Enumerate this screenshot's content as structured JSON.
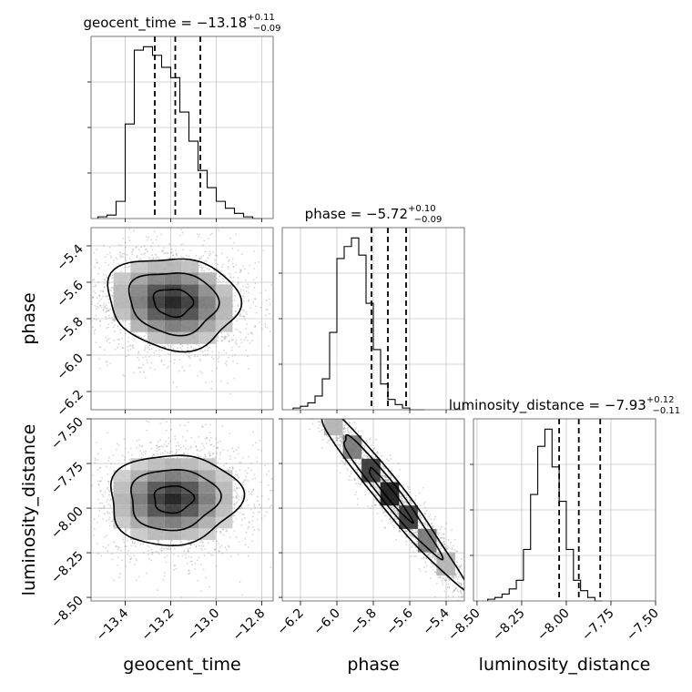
{
  "chart_data": {
    "type": "corner",
    "parameters": [
      {
        "name": "geocent_time",
        "median": -13.18,
        "plus": 0.11,
        "minus": 0.09,
        "title": {
          "prefix": "geocent_time = −13.18",
          "sup": "+0.11",
          "sub": "−0.09"
        },
        "range": [
          -13.55,
          -12.75
        ],
        "ticks": [
          -13.4,
          -13.2,
          -13.0,
          -12.8
        ],
        "tick_labels": [
          "−13.4",
          "−13.2",
          "−13.0",
          "−12.8"
        ],
        "quantiles": [
          -13.27,
          -13.18,
          -13.07
        ]
      },
      {
        "name": "phase",
        "median": -5.72,
        "plus": 0.1,
        "minus": 0.09,
        "title": {
          "prefix": "phase = −5.72",
          "sup": "+0.10",
          "sub": "−0.09"
        },
        "range": [
          -6.3,
          -5.3
        ],
        "ticks": [
          -6.2,
          -6.0,
          -5.8,
          -5.6,
          -5.4
        ],
        "tick_labels": [
          "−6.2",
          "−6.0",
          "−5.8",
          "−5.6",
          "−5.4"
        ],
        "quantiles": [
          -5.81,
          -5.72,
          -5.62
        ]
      },
      {
        "name": "luminosity_distance",
        "median": -7.93,
        "plus": 0.12,
        "minus": 0.11,
        "title": {
          "prefix": "luminosity_distance = −7.93",
          "sup": "+0.12",
          "sub": "−0.11"
        },
        "range": [
          -8.52,
          -7.5
        ],
        "ticks": [
          -8.5,
          -8.25,
          -8.0,
          -7.75,
          -7.5
        ],
        "tick_labels": [
          "−8.50",
          "−8.25",
          "−8.00",
          "−7.75",
          "−7.50"
        ],
        "quantiles": [
          -8.04,
          -7.93,
          -7.81
        ]
      }
    ],
    "histograms": [
      {
        "param": "geocent_time",
        "bin_start": -13.52,
        "bin_width": 0.04,
        "counts": [
          1,
          2,
          10,
          55,
          98,
          100,
          95,
          88,
          82,
          62,
          45,
          28,
          18,
          10,
          6,
          3,
          1,
          0
        ]
      },
      {
        "param": "phase",
        "bin_start": -6.24,
        "bin_width": 0.04,
        "counts": [
          1,
          2,
          4,
          8,
          18,
          45,
          88,
          95,
          100,
          90,
          62,
          35,
          15,
          6,
          3,
          1,
          0,
          0
        ]
      },
      {
        "param": "luminosity_distance",
        "bin_start": -8.44,
        "bin_width": 0.04,
        "counts": [
          1,
          2,
          4,
          7,
          12,
          30,
          62,
          90,
          100,
          78,
          58,
          30,
          12,
          6,
          2,
          0
        ]
      }
    ],
    "joint_2d": [
      {
        "x": "geocent_time",
        "y": "phase",
        "center": [
          -13.19,
          -5.71
        ],
        "spread": [
          0.16,
          0.14
        ],
        "rho": -0.1
      },
      {
        "x": "geocent_time",
        "y": "luminosity_distance",
        "center": [
          -13.19,
          -7.95
        ],
        "spread": [
          0.16,
          0.14
        ],
        "rho": 0.05
      },
      {
        "x": "phase",
        "y": "luminosity_distance",
        "center": [
          -5.71,
          -7.92
        ],
        "spread": [
          0.22,
          0.28
        ],
        "rho": -0.97
      }
    ],
    "axis_labels": {
      "x": [
        "geocent_time",
        "phase",
        "luminosity_distance"
      ],
      "y": [
        "phase",
        "luminosity_distance"
      ]
    },
    "grid": true
  }
}
